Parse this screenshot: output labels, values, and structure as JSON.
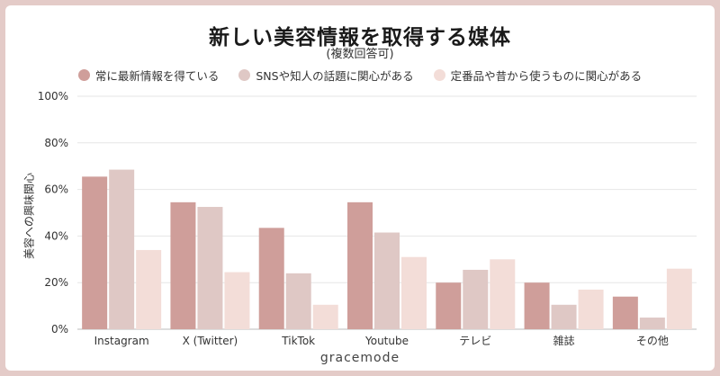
{
  "chart_data": {
    "type": "bar",
    "title": "新しい美容情報を取得する媒体",
    "subtitle": "(複数回答可)",
    "ylabel": "美容への興味関心",
    "ylim": [
      0,
      100
    ],
    "yticks": [
      "0%",
      "20%",
      "40%",
      "60%",
      "80%",
      "100%"
    ],
    "grid": true,
    "legend_position": "top",
    "categories": [
      "Instagram",
      "X (Twitter)",
      "TikTok",
      "Youtube",
      "テレビ",
      "雑誌",
      "その他"
    ],
    "series": [
      {
        "name": "常に最新情報を得ている",
        "color": "#cf9e9a",
        "values": [
          65.5,
          54.5,
          43.5,
          54.5,
          20,
          20,
          14
        ]
      },
      {
        "name": "SNSや知人の話題に関心がある",
        "color": "#dfc8c5",
        "values": [
          68.5,
          52.5,
          24,
          41.5,
          25.5,
          10.5,
          5
        ]
      },
      {
        "name": "定番品や昔から使うものに関心がある",
        "color": "#f3ddd8",
        "values": [
          34,
          24.5,
          10.5,
          31,
          30,
          17,
          26
        ]
      }
    ]
  },
  "footer": {
    "brand": "gracemode"
  }
}
